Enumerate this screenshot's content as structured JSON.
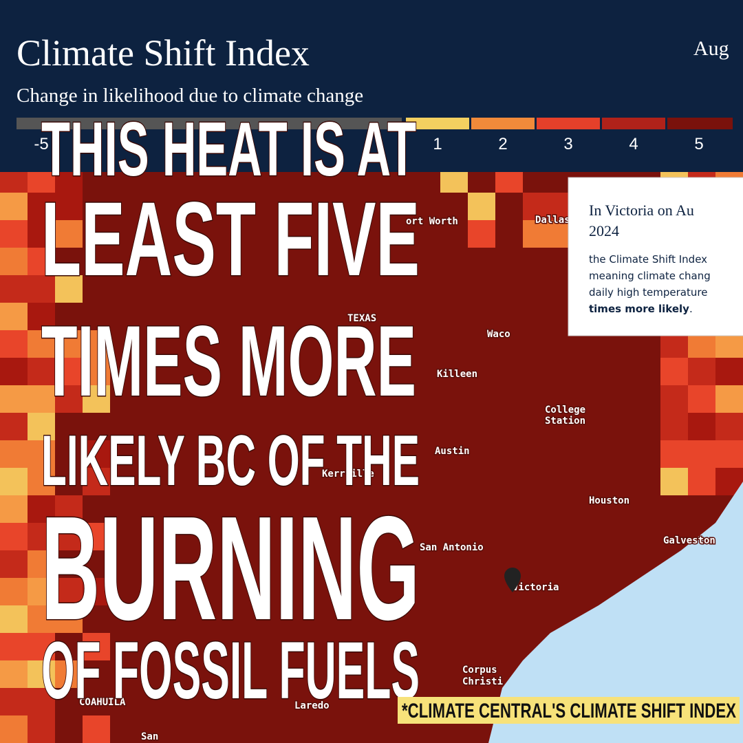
{
  "header": {
    "title": "Climate Shift Index",
    "subtitle": "Change in likelihood due to climate change",
    "date": "Aug"
  },
  "legend": {
    "labels": [
      "-5",
      "1",
      "2",
      "3",
      "4",
      "5"
    ]
  },
  "map": {
    "cities": [
      "ort Worth",
      "Dallas",
      "TEXAS",
      "Waco",
      "Killeen",
      "College",
      "Station",
      "Austin",
      "Kerrville",
      "Houston",
      "San Antonio",
      "Galveston",
      "Victoria",
      "Corpus",
      "Christi",
      "Laredo",
      "COAHUILA",
      "San"
    ]
  },
  "popup": {
    "title": "In Victoria on Au",
    "year": "2024",
    "lines": [
      "the Climate Shift Index",
      "meaning climate chang",
      "daily high temperature"
    ],
    "emphasis": "times more likely",
    "end": "."
  },
  "headline": [
    "THIS HEAT IS AT",
    "LEAST FIVE",
    "TIMES MORE",
    "LIKELY BC OF THE",
    "BURNING",
    "OF FOSSIL FUELS"
  ],
  "footnote": "*CLIMATE CENTRAL'S CLIMATE SHIFT INDEX"
}
